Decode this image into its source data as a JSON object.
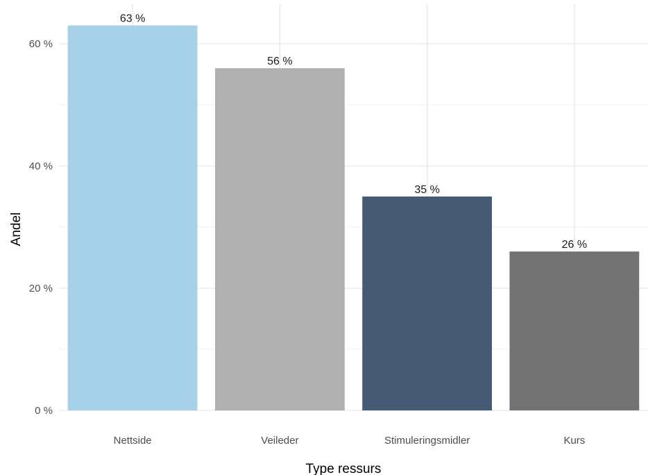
{
  "chart_data": {
    "type": "bar",
    "title": "",
    "xlabel": "Type ressurs",
    "ylabel": "Andel",
    "categories": [
      "Nettside",
      "Veileder",
      "Stimuleringsmidler",
      "Kurs"
    ],
    "values": [
      63,
      56,
      35,
      26
    ],
    "value_labels": [
      "63 %",
      "56 %",
      "35 %",
      "26 %"
    ],
    "bar_colors": [
      "#a6d1e8",
      "#b0b0b0",
      "#465b73",
      "#727272"
    ],
    "ylim": [
      0,
      66
    ],
    "y_ticks": [
      0,
      20,
      40,
      60
    ],
    "y_tick_labels": [
      "0 %",
      "20 %",
      "40 %",
      "60 %"
    ],
    "grid": true,
    "legend": "none"
  }
}
